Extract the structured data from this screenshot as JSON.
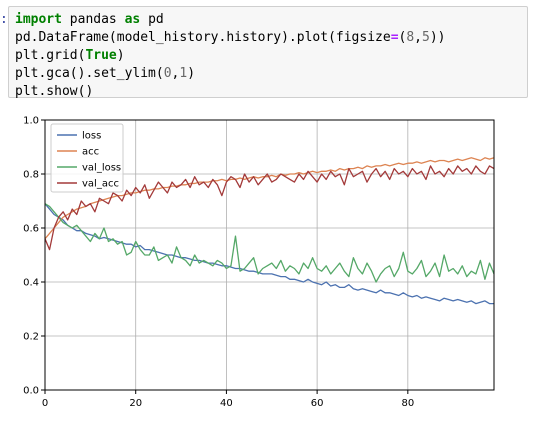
{
  "cell": {
    "prompt": ":",
    "lines": [
      [
        {
          "t": "import",
          "c": "kw"
        },
        {
          "t": " pandas "
        },
        {
          "t": "as",
          "c": "kw"
        },
        {
          "t": " pd"
        }
      ],
      [
        {
          "t": "pd.DataFrame(model_history.history).plot(figsize"
        },
        {
          "t": "=",
          "c": "op"
        },
        {
          "t": "("
        },
        {
          "t": "8",
          "c": "num"
        },
        {
          "t": ","
        },
        {
          "t": "5",
          "c": "num"
        },
        {
          "t": "))"
        }
      ],
      [
        {
          "t": "plt.grid("
        },
        {
          "t": "True",
          "c": "const"
        },
        {
          "t": ")"
        }
      ],
      [
        {
          "t": "plt.gca().set_ylim("
        },
        {
          "t": "0",
          "c": "num"
        },
        {
          "t": ","
        },
        {
          "t": "1",
          "c": "num"
        },
        {
          "t": ")"
        }
      ],
      [
        {
          "t": "plt.show()"
        }
      ]
    ]
  },
  "colors": {
    "loss": "#4c72b0",
    "acc": "#dd8452",
    "val_loss": "#55a868",
    "val_acc": "#a33a3a"
  },
  "chart_data": {
    "type": "line",
    "title": "",
    "xlabel": "",
    "ylabel": "",
    "xlim": [
      0,
      99
    ],
    "ylim": [
      0,
      1
    ],
    "xticks": [
      0,
      20,
      40,
      60,
      80
    ],
    "yticks": [
      0.0,
      0.2,
      0.4,
      0.6,
      0.8,
      1.0
    ],
    "ytick_labels": [
      "0.0",
      "0.2",
      "0.4",
      "0.6",
      "0.8",
      "1.0"
    ],
    "grid": true,
    "legend": "upper-left",
    "series": [
      {
        "name": "loss",
        "values": [
          0.69,
          0.67,
          0.65,
          0.64,
          0.63,
          0.61,
          0.6,
          0.59,
          0.59,
          0.58,
          0.575,
          0.57,
          0.56,
          0.565,
          0.56,
          0.555,
          0.55,
          0.545,
          0.54,
          0.54,
          0.53,
          0.535,
          0.52,
          0.52,
          0.515,
          0.51,
          0.505,
          0.5,
          0.5,
          0.495,
          0.49,
          0.49,
          0.485,
          0.48,
          0.48,
          0.475,
          0.47,
          0.47,
          0.465,
          0.46,
          0.46,
          0.455,
          0.45,
          0.45,
          0.445,
          0.44,
          0.44,
          0.435,
          0.43,
          0.43,
          0.43,
          0.425,
          0.42,
          0.42,
          0.41,
          0.41,
          0.405,
          0.4,
          0.41,
          0.4,
          0.395,
          0.39,
          0.4,
          0.385,
          0.39,
          0.38,
          0.38,
          0.39,
          0.375,
          0.37,
          0.375,
          0.37,
          0.365,
          0.36,
          0.37,
          0.36,
          0.36,
          0.355,
          0.35,
          0.36,
          0.35,
          0.345,
          0.35,
          0.34,
          0.345,
          0.34,
          0.335,
          0.33,
          0.34,
          0.335,
          0.33,
          0.335,
          0.33,
          0.325,
          0.33,
          0.32,
          0.325,
          0.33,
          0.32,
          0.32
        ]
      },
      {
        "name": "acc",
        "values": [
          0.56,
          0.58,
          0.6,
          0.62,
          0.64,
          0.65,
          0.66,
          0.67,
          0.675,
          0.68,
          0.69,
          0.695,
          0.7,
          0.705,
          0.71,
          0.715,
          0.72,
          0.72,
          0.725,
          0.73,
          0.73,
          0.735,
          0.74,
          0.74,
          0.745,
          0.745,
          0.75,
          0.75,
          0.755,
          0.755,
          0.76,
          0.76,
          0.765,
          0.765,
          0.77,
          0.77,
          0.77,
          0.775,
          0.775,
          0.78,
          0.775,
          0.78,
          0.78,
          0.785,
          0.78,
          0.785,
          0.79,
          0.785,
          0.79,
          0.79,
          0.795,
          0.79,
          0.8,
          0.795,
          0.8,
          0.8,
          0.805,
          0.8,
          0.805,
          0.81,
          0.805,
          0.81,
          0.81,
          0.815,
          0.81,
          0.82,
          0.815,
          0.82,
          0.82,
          0.825,
          0.82,
          0.83,
          0.825,
          0.83,
          0.83,
          0.835,
          0.83,
          0.835,
          0.84,
          0.835,
          0.84,
          0.84,
          0.845,
          0.84,
          0.845,
          0.85,
          0.845,
          0.85,
          0.85,
          0.845,
          0.85,
          0.855,
          0.85,
          0.855,
          0.86,
          0.855,
          0.85,
          0.86,
          0.855,
          0.86
        ]
      },
      {
        "name": "val_loss",
        "values": [
          0.69,
          0.68,
          0.66,
          0.64,
          0.62,
          0.61,
          0.6,
          0.61,
          0.59,
          0.57,
          0.55,
          0.58,
          0.56,
          0.6,
          0.55,
          0.56,
          0.54,
          0.55,
          0.5,
          0.51,
          0.55,
          0.52,
          0.5,
          0.5,
          0.53,
          0.48,
          0.49,
          0.5,
          0.47,
          0.53,
          0.49,
          0.48,
          0.46,
          0.5,
          0.47,
          0.48,
          0.47,
          0.46,
          0.48,
          0.47,
          0.45,
          0.46,
          0.57,
          0.44,
          0.45,
          0.47,
          0.49,
          0.43,
          0.45,
          0.46,
          0.47,
          0.45,
          0.48,
          0.44,
          0.46,
          0.45,
          0.43,
          0.47,
          0.45,
          0.49,
          0.45,
          0.44,
          0.46,
          0.43,
          0.45,
          0.47,
          0.44,
          0.42,
          0.49,
          0.45,
          0.43,
          0.47,
          0.44,
          0.4,
          0.43,
          0.45,
          0.46,
          0.42,
          0.45,
          0.51,
          0.44,
          0.43,
          0.45,
          0.48,
          0.42,
          0.44,
          0.47,
          0.42,
          0.5,
          0.44,
          0.45,
          0.43,
          0.46,
          0.42,
          0.44,
          0.43,
          0.48,
          0.41,
          0.47,
          0.43
        ]
      },
      {
        "name": "val_acc",
        "values": [
          0.56,
          0.52,
          0.6,
          0.64,
          0.66,
          0.63,
          0.67,
          0.65,
          0.7,
          0.68,
          0.69,
          0.66,
          0.71,
          0.7,
          0.69,
          0.73,
          0.72,
          0.7,
          0.74,
          0.72,
          0.75,
          0.73,
          0.76,
          0.71,
          0.74,
          0.77,
          0.75,
          0.73,
          0.77,
          0.75,
          0.76,
          0.78,
          0.75,
          0.79,
          0.76,
          0.77,
          0.75,
          0.78,
          0.76,
          0.72,
          0.77,
          0.79,
          0.78,
          0.75,
          0.8,
          0.77,
          0.79,
          0.76,
          0.78,
          0.8,
          0.77,
          0.78,
          0.8,
          0.79,
          0.78,
          0.77,
          0.8,
          0.78,
          0.81,
          0.79,
          0.77,
          0.8,
          0.78,
          0.81,
          0.79,
          0.8,
          0.76,
          0.82,
          0.79,
          0.8,
          0.81,
          0.77,
          0.8,
          0.82,
          0.79,
          0.81,
          0.78,
          0.82,
          0.8,
          0.81,
          0.79,
          0.82,
          0.8,
          0.81,
          0.78,
          0.83,
          0.8,
          0.81,
          0.79,
          0.82,
          0.8,
          0.83,
          0.81,
          0.82,
          0.8,
          0.83,
          0.81,
          0.8,
          0.83,
          0.82
        ]
      }
    ]
  }
}
